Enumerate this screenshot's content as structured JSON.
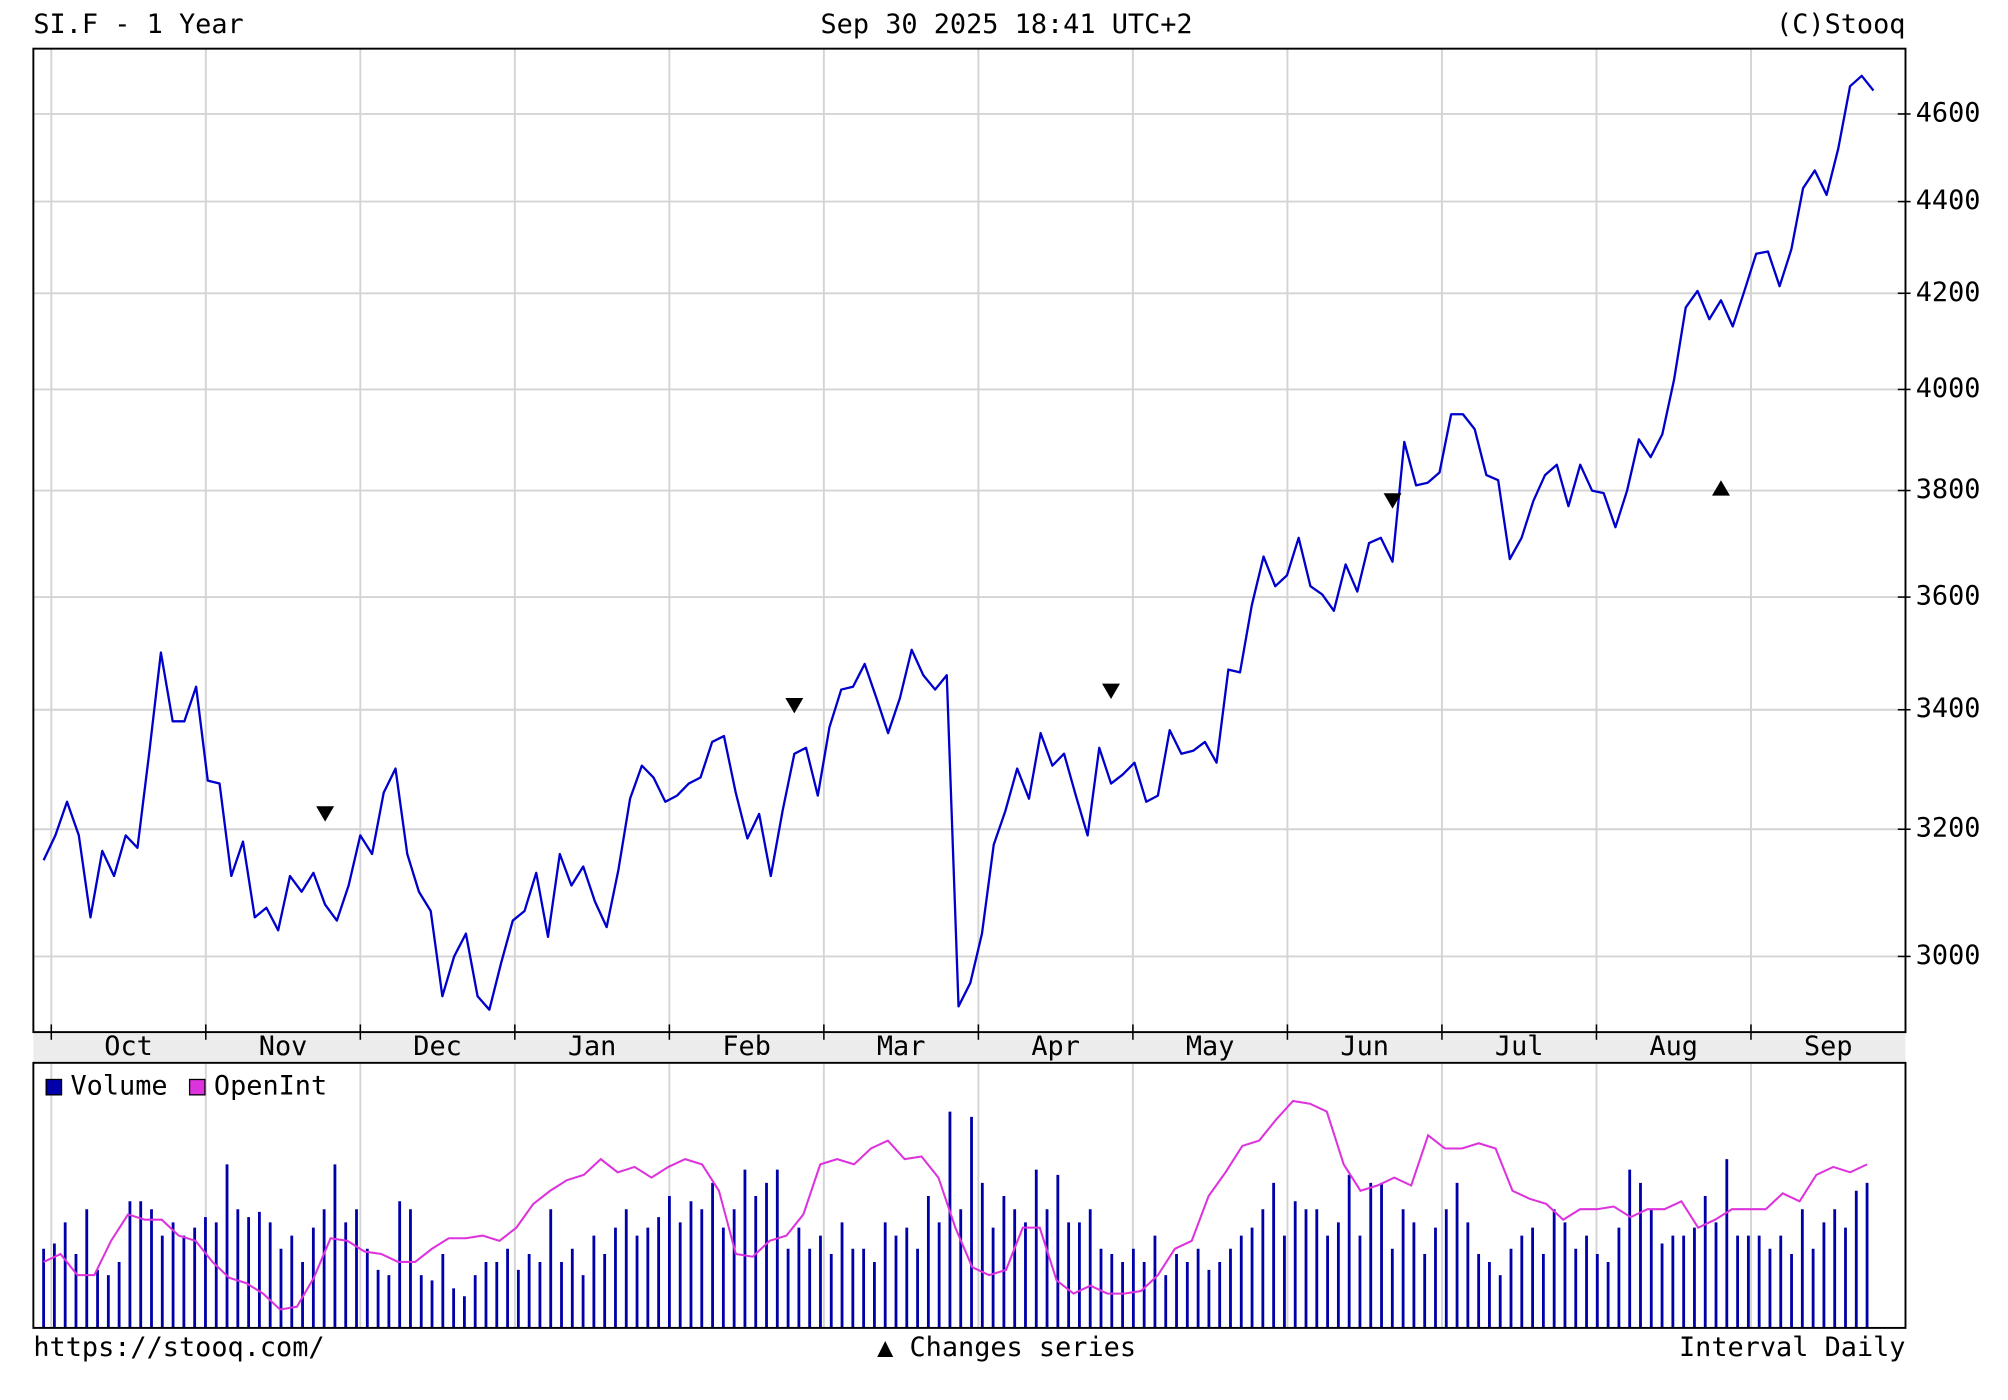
{
  "chart_data": [
    {
      "type": "line",
      "title": "SI.F - 1 Year",
      "subtitle": "Sep 30 2025 18:41 UTC+2",
      "source": "(C)Stooq",
      "months": [
        "Oct",
        "Nov",
        "Dec",
        "Jan",
        "Feb",
        "Mar",
        "Apr",
        "May",
        "Jun",
        "Jul",
        "Aug",
        "Sep"
      ],
      "values": [
        3150,
        3190,
        3245,
        3190,
        3060,
        3165,
        3125,
        3190,
        3170,
        3325,
        3500,
        3380,
        3380,
        3440,
        3280,
        3275,
        3125,
        3180,
        3060,
        3075,
        3040,
        3125,
        3100,
        3130,
        3080,
        3055,
        3110,
        3190,
        3160,
        3260,
        3300,
        3160,
        3100,
        3070,
        2940,
        3000,
        3035,
        2940,
        2920,
        2990,
        3055,
        3070,
        3130,
        3030,
        3160,
        3110,
        3140,
        3085,
        3045,
        3135,
        3250,
        3305,
        3285,
        3245,
        3255,
        3275,
        3285,
        3345,
        3355,
        3260,
        3185,
        3225,
        3125,
        3230,
        3325,
        3335,
        3255,
        3370,
        3435,
        3440,
        3480,
        3420,
        3360,
        3420,
        3505,
        3460,
        3435,
        3460,
        2925,
        2960,
        3035,
        3175,
        3230,
        3300,
        3250,
        3360,
        3305,
        3325,
        3255,
        3190,
        3335,
        3275,
        3290,
        3310,
        3245,
        3255,
        3365,
        3325,
        3330,
        3345,
        3310,
        3470,
        3465,
        3585,
        3675,
        3620,
        3640,
        3710,
        3620,
        3605,
        3575,
        3660,
        3610,
        3700,
        3710,
        3665,
        3895,
        3810,
        3815,
        3835,
        3950,
        3950,
        3920,
        3830,
        3820,
        3670,
        3710,
        3780,
        3830,
        3850,
        3770,
        3850,
        3800,
        3795,
        3730,
        3800,
        3900,
        3865,
        3910,
        4020,
        4170,
        4205,
        4145,
        4185,
        4130,
        4205,
        4285,
        4290,
        4215,
        4295,
        4430,
        4470,
        4415,
        4520,
        4665,
        4690,
        4655
      ],
      "color": "#0000cc",
      "ylim": [
        2887,
        4755
      ],
      "yticks": [
        3000,
        3200,
        3400,
        3600,
        3800,
        4000,
        4200,
        4400,
        4600
      ],
      "log_scale": true,
      "grid": true,
      "markers": [
        {
          "index": 24,
          "value": 3225,
          "direction": "down"
        },
        {
          "index": 64,
          "value": 3407,
          "direction": "down"
        },
        {
          "index": 91,
          "value": 3432,
          "direction": "down"
        },
        {
          "index": 115,
          "value": 3780,
          "direction": "down"
        },
        {
          "index": 143,
          "value": 3805,
          "direction": "up"
        }
      ]
    },
    {
      "type": "bar",
      "ylim": [
        0,
        100
      ],
      "grid": true,
      "legend": "upper left",
      "series": [
        {
          "name": "Volume",
          "color": "#0000aa",
          "type": "bar",
          "values": [
            30,
            32,
            40,
            28,
            45,
            22,
            20,
            25,
            48,
            48,
            45,
            35,
            40,
            35,
            38,
            42,
            40,
            62,
            45,
            42,
            44,
            40,
            30,
            35,
            25,
            38,
            45,
            62,
            40,
            45,
            30,
            22,
            20,
            48,
            45,
            20,
            18,
            28,
            15,
            12,
            20,
            25,
            25,
            30,
            22,
            28,
            25,
            45,
            25,
            30,
            20,
            35,
            28,
            38,
            45,
            35,
            38,
            42,
            50,
            40,
            48,
            45,
            55,
            38,
            45,
            60,
            50,
            55,
            60,
            30,
            38,
            30,
            35,
            28,
            40,
            30,
            30,
            25,
            40,
            35,
            38,
            30,
            50,
            40,
            82,
            45,
            80,
            55,
            38,
            50,
            45,
            40,
            60,
            45,
            58,
            40,
            40,
            45,
            30,
            28,
            25,
            30,
            25,
            35,
            20,
            28,
            25,
            30,
            22,
            25,
            30,
            35,
            38,
            45,
            55,
            35,
            48,
            45,
            45,
            35,
            40,
            58,
            35,
            55,
            55,
            30,
            45,
            40,
            28,
            38,
            45,
            55,
            40,
            28,
            25,
            20,
            30,
            35,
            38,
            28,
            45,
            40,
            30,
            35,
            28,
            25,
            38,
            60,
            55,
            45,
            32,
            35,
            35,
            38,
            50,
            40,
            64,
            35,
            35,
            35,
            30,
            35,
            28,
            45,
            30,
            40,
            45,
            38,
            52,
            55
          ]
        },
        {
          "name": "OpenInt",
          "color": "#dd33dd",
          "type": "line",
          "values": [
            25,
            28,
            20,
            20,
            33,
            43,
            41,
            41,
            35,
            33,
            25,
            19,
            17,
            13,
            7,
            8,
            19,
            34,
            33,
            29,
            28,
            25,
            25,
            30,
            34,
            34,
            35,
            33,
            38,
            47,
            52,
            56,
            58,
            64,
            59,
            61,
            57,
            61,
            64,
            62,
            52,
            28,
            27,
            33,
            35,
            43,
            62,
            64,
            62,
            68,
            71,
            64,
            65,
            57,
            38,
            23,
            20,
            22,
            38,
            38,
            18,
            13,
            16,
            13,
            13,
            14,
            20,
            30,
            33,
            50,
            59,
            69,
            71,
            79,
            86,
            85,
            82,
            62,
            52,
            54,
            57,
            54,
            73,
            68,
            68,
            70,
            68,
            52,
            49,
            47,
            41,
            45,
            45,
            46,
            42,
            45,
            45,
            48,
            38,
            41,
            45,
            45,
            45,
            51,
            48,
            58,
            61,
            59,
            62
          ]
        }
      ]
    }
  ],
  "footer": {
    "url": "https://stooq.com/",
    "note": "▲ Changes series",
    "interval": "Interval Daily"
  }
}
